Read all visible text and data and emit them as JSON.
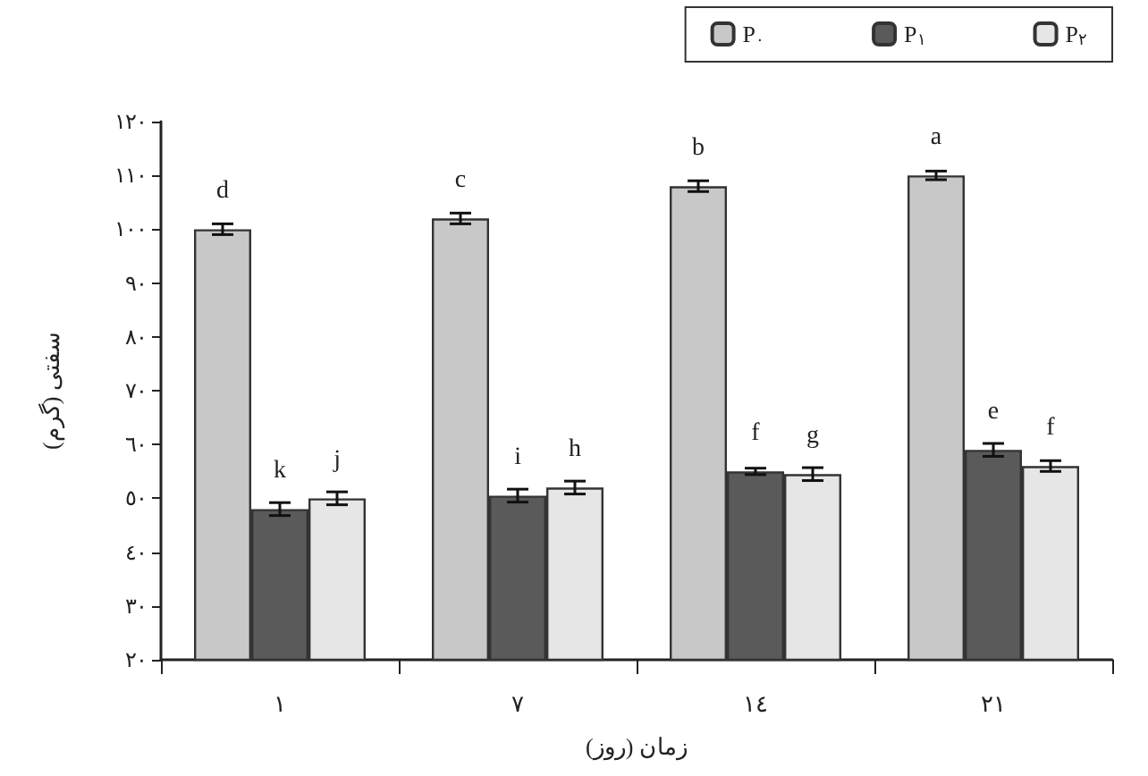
{
  "chart_data": {
    "type": "bar",
    "xlabel": "زمان (روز)",
    "ylabel": "سفتی (گرم)",
    "categories": [
      "١",
      "٧",
      "١٤",
      "٢١"
    ],
    "series": [
      {
        "name": "P$_{٠}$",
        "color": "#c8c8c8",
        "values": [
          100,
          102,
          108,
          110
        ],
        "errors": [
          1,
          1,
          1,
          0.8
        ],
        "value_labels": [
          "d",
          "c",
          "b",
          "a"
        ]
      },
      {
        "name": "P$_{١}$",
        "color": "#5a5a5a",
        "values": [
          48,
          50.5,
          55,
          59
        ],
        "errors": [
          1.2,
          1.2,
          0.6,
          1.2
        ],
        "value_labels": [
          "k",
          "i",
          "f",
          "e"
        ]
      },
      {
        "name": "P$_{٢}$",
        "color": "#e6e6e6",
        "values": [
          50,
          52,
          54.5,
          56
        ],
        "errors": [
          1.2,
          1.2,
          1.2,
          1
        ],
        "value_labels": [
          "j",
          "h",
          "g",
          "f"
        ]
      }
    ],
    "ylim": [
      20,
      120
    ],
    "yticks": [
      {
        "value": 20,
        "label": "٢٠"
      },
      {
        "value": 30,
        "label": "٣٠"
      },
      {
        "value": 40,
        "label": "٤٠"
      },
      {
        "value": 50,
        "label": "٥٠"
      },
      {
        "value": 60,
        "label": "٦٠"
      },
      {
        "value": 70,
        "label": "٧٠"
      },
      {
        "value": 80,
        "label": "٨٠"
      },
      {
        "value": 90,
        "label": "٩٠"
      },
      {
        "value": 100,
        "label": "١٠٠"
      },
      {
        "value": 110,
        "label": "١١٠"
      },
      {
        "value": 120,
        "label": "١٢٠"
      }
    ],
    "grid": false,
    "legend": "top right"
  }
}
